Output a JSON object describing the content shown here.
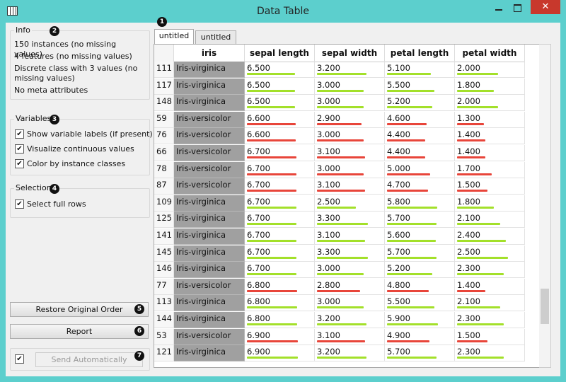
{
  "window": {
    "title": "Data Table"
  },
  "tabs": [
    "untitled",
    "untitled"
  ],
  "badges": [
    1,
    2,
    3,
    4,
    5,
    6,
    7
  ],
  "info": {
    "title": "Info",
    "lines": [
      "150 instances (no missing values)",
      "4 features (no missing values)",
      "Discrete class with 3 values (no missing values)",
      "No meta attributes"
    ]
  },
  "variables": {
    "title": "Variables",
    "options": [
      {
        "label": "Show variable labels (if present)",
        "checked": true
      },
      {
        "label": "Visualize continuous values",
        "checked": true
      },
      {
        "label": "Color by instance classes",
        "checked": true
      }
    ]
  },
  "selection": {
    "title": "Selection",
    "options": [
      {
        "label": "Select full rows",
        "checked": true
      }
    ]
  },
  "buttons": {
    "restore": "Restore Original Order",
    "report": "Report",
    "send": "Send Automatically",
    "auto_send_checked": true
  },
  "class_colors": {
    "Iris-virginica": "#a3e02a",
    "Iris-versicolor": "#e8453a"
  },
  "table": {
    "sorted_column": 1,
    "columns": [
      "iris",
      "sepal length",
      "sepal width",
      "petal length",
      "petal width"
    ],
    "rows": [
      {
        "id": "111",
        "values": [
          "Iris-virginica",
          "6.500",
          "3.200",
          "5.100",
          "2.000"
        ]
      },
      {
        "id": "117",
        "values": [
          "Iris-virginica",
          "6.500",
          "3.000",
          "5.500",
          "1.800"
        ]
      },
      {
        "id": "148",
        "values": [
          "Iris-virginica",
          "6.500",
          "3.000",
          "5.200",
          "2.000"
        ]
      },
      {
        "id": "59",
        "values": [
          "Iris-versicolor",
          "6.600",
          "2.900",
          "4.600",
          "1.300"
        ]
      },
      {
        "id": "76",
        "values": [
          "Iris-versicolor",
          "6.600",
          "3.000",
          "4.400",
          "1.400"
        ]
      },
      {
        "id": "66",
        "values": [
          "Iris-versicolor",
          "6.700",
          "3.100",
          "4.400",
          "1.400"
        ]
      },
      {
        "id": "78",
        "values": [
          "Iris-versicolor",
          "6.700",
          "3.000",
          "5.000",
          "1.700"
        ]
      },
      {
        "id": "87",
        "values": [
          "Iris-versicolor",
          "6.700",
          "3.100",
          "4.700",
          "1.500"
        ]
      },
      {
        "id": "109",
        "values": [
          "Iris-virginica",
          "6.700",
          "2.500",
          "5.800",
          "1.800"
        ]
      },
      {
        "id": "125",
        "values": [
          "Iris-virginica",
          "6.700",
          "3.300",
          "5.700",
          "2.100"
        ]
      },
      {
        "id": "141",
        "values": [
          "Iris-virginica",
          "6.700",
          "3.100",
          "5.600",
          "2.400"
        ]
      },
      {
        "id": "145",
        "values": [
          "Iris-virginica",
          "6.700",
          "3.300",
          "5.700",
          "2.500"
        ]
      },
      {
        "id": "146",
        "values": [
          "Iris-virginica",
          "6.700",
          "3.000",
          "5.200",
          "2.300"
        ]
      },
      {
        "id": "77",
        "values": [
          "Iris-versicolor",
          "6.800",
          "2.800",
          "4.800",
          "1.400"
        ]
      },
      {
        "id": "113",
        "values": [
          "Iris-virginica",
          "6.800",
          "3.000",
          "5.500",
          "2.100"
        ]
      },
      {
        "id": "144",
        "values": [
          "Iris-virginica",
          "6.800",
          "3.200",
          "5.900",
          "2.300"
        ]
      },
      {
        "id": "53",
        "values": [
          "Iris-versicolor",
          "6.900",
          "3.100",
          "4.900",
          "1.500"
        ]
      },
      {
        "id": "121",
        "values": [
          "Iris-virginica",
          "6.900",
          "3.200",
          "5.700",
          "2.300"
        ]
      }
    ]
  }
}
